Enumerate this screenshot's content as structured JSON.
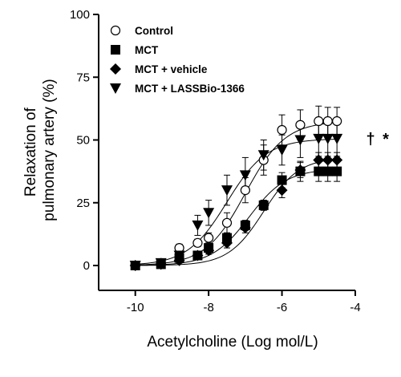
{
  "chart_data": {
    "type": "scatter",
    "xlabel": "Acetylcholine (Log mol/L)",
    "ylabel": [
      "Relaxation of",
      "pulmonary artery (%)"
    ],
    "xlim": [
      -11,
      -4
    ],
    "ylim": [
      -5,
      100
    ],
    "xticks": [
      -10,
      -8,
      -6,
      -4
    ],
    "yticks": [
      0,
      25,
      50,
      75,
      100
    ],
    "x": [
      -10,
      -9.3,
      -8.8,
      -8.3,
      -8,
      -7.5,
      -7,
      -6.5,
      -6,
      -5.5,
      -5,
      -4.75,
      -4.5
    ],
    "legend_position": "top-left",
    "series": [
      {
        "name": "Control",
        "marker": "circle-open",
        "values": [
          0,
          1,
          7,
          9,
          11,
          17,
          30,
          42,
          54,
          56,
          57.5,
          57.5,
          57.5
        ],
        "errors": [
          1,
          1,
          1.5,
          1.5,
          2,
          4,
          5,
          6,
          6,
          6,
          6,
          5.5,
          5.5
        ],
        "curve": {
          "bottom": 0,
          "top": 57.5,
          "log_ec50": -7.0,
          "hill": 0.8
        }
      },
      {
        "name": "MCT",
        "marker": "square-filled",
        "values": [
          0,
          0.5,
          3,
          4,
          7,
          11,
          16,
          24,
          34,
          37.5,
          37.5,
          37.5,
          37.5
        ],
        "errors": [
          1,
          1,
          1,
          1,
          1.5,
          2,
          2,
          2,
          3,
          4,
          4,
          4,
          4
        ],
        "curve": {
          "bottom": 0,
          "top": 38.5,
          "log_ec50": -6.9,
          "hill": 0.85
        }
      },
      {
        "name": "MCT + vehicle",
        "marker": "diamond-filled",
        "values": [
          0,
          0.5,
          2,
          4,
          6,
          9,
          15,
          24,
          30,
          38,
          42,
          42,
          42
        ],
        "errors": [
          1,
          1,
          1,
          1,
          1.5,
          2,
          2,
          2,
          3,
          3,
          3,
          3,
          3
        ],
        "curve": {
          "bottom": 0,
          "top": 43,
          "log_ec50": -6.5,
          "hill": 0.9
        }
      },
      {
        "name": "MCT + LASSBio-1366",
        "marker": "triangle-down-filled",
        "values": [
          0,
          1,
          4,
          16,
          21,
          30,
          36,
          44,
          46,
          50,
          50.5,
          50.5,
          50.5
        ],
        "errors": [
          1,
          1,
          2,
          4,
          5,
          6,
          7,
          6,
          6,
          7,
          7,
          7,
          7
        ],
        "curve": {
          "bottom": 0,
          "top": 50.5,
          "log_ec50": -7.5,
          "hill": 0.8
        }
      }
    ],
    "annotations": [
      "†",
      "*"
    ],
    "annotation_y": 50.5,
    "grid": false
  }
}
